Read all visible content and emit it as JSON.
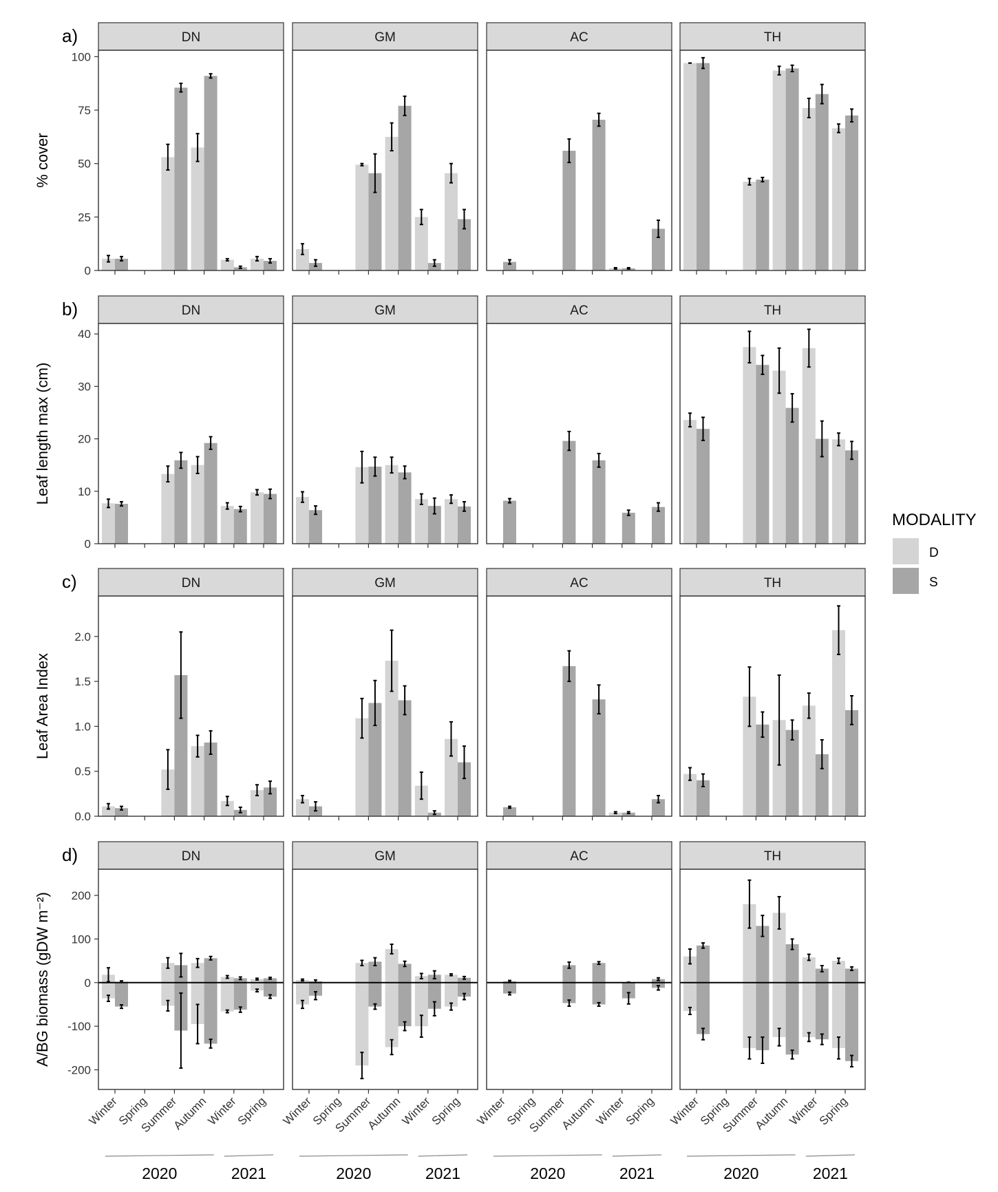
{
  "legend": {
    "title": "MODALITY",
    "items": [
      {
        "label": "D",
        "color": "#d4d4d4"
      },
      {
        "label": "S",
        "color": "#a6a6a6"
      }
    ]
  },
  "sites": [
    "DN",
    "GM",
    "AC",
    "TH"
  ],
  "seasons": [
    "Winter",
    "Spring",
    "Summer",
    "Autumn",
    "Winter",
    "Spring"
  ],
  "years": [
    "2020",
    "2021"
  ],
  "chart_data": [
    {
      "type": "bar",
      "panel": "a)",
      "ylabel": "% cover",
      "ylim": [
        0,
        103
      ],
      "ticks": [
        0,
        25,
        50,
        75,
        100
      ],
      "tick_labels": [
        "0",
        "25",
        "50",
        "75",
        "100"
      ],
      "sites": {
        "DN": {
          "D": [
            5.5,
            null,
            53,
            57.5,
            5,
            5.5
          ],
          "D_err": [
            1.5,
            null,
            6,
            6.5,
            0.5,
            1
          ],
          "S": [
            5.5,
            null,
            85.5,
            91,
            1.5,
            4.5
          ],
          "S_err": [
            1,
            null,
            2,
            1,
            0.5,
            1
          ]
        },
        "GM": {
          "D": [
            10,
            null,
            49.5,
            62.5,
            25,
            45.5
          ],
          "D_err": [
            2.5,
            null,
            0.5,
            6.5,
            3.5,
            4.5
          ],
          "S": [
            3.5,
            null,
            45.5,
            77,
            3.5,
            24
          ],
          "S_err": [
            1.5,
            null,
            9,
            4.5,
            1.5,
            4.5
          ]
        },
        "AC": {
          "D": [
            null,
            null,
            null,
            null,
            1,
            null
          ],
          "D_err": [
            null,
            null,
            null,
            null,
            0.3,
            null
          ],
          "S": [
            4,
            null,
            56,
            70.5,
            1,
            19.5
          ],
          "S_err": [
            1,
            null,
            5.5,
            3,
            0.3,
            4
          ]
        },
        "TH": {
          "D": [
            97,
            null,
            41.5,
            93.5,
            76,
            66.5
          ],
          "D_err": [
            0,
            null,
            1.5,
            2,
            4.5,
            2
          ],
          "S": [
            97,
            null,
            42.5,
            94.5,
            82.5,
            72.5
          ],
          "S_err": [
            2.5,
            null,
            1,
            1.5,
            4.5,
            3
          ]
        }
      }
    },
    {
      "type": "bar",
      "panel": "b)",
      "ylabel": "Leaf length max (cm)",
      "ylim": [
        0,
        42
      ],
      "ticks": [
        0,
        10,
        20,
        30,
        40
      ],
      "tick_labels": [
        "0",
        "10",
        "20",
        "30",
        "40"
      ],
      "sites": {
        "DN": {
          "D": [
            7.7,
            null,
            13.3,
            15,
            7.2,
            9.8
          ],
          "D_err": [
            0.8,
            null,
            1.5,
            1.6,
            0.6,
            0.5
          ],
          "S": [
            7.6,
            null,
            15.9,
            19.2,
            6.6,
            9.5
          ],
          "S_err": [
            0.4,
            null,
            1.5,
            1.2,
            0.5,
            0.9
          ]
        },
        "GM": {
          "D": [
            8.9,
            null,
            14.6,
            15,
            8.5,
            8.5
          ],
          "D_err": [
            1,
            null,
            3,
            1.5,
            1,
            0.8
          ],
          "S": [
            6.4,
            null,
            14.7,
            13.6,
            7.2,
            7.1
          ],
          "S_err": [
            0.8,
            null,
            1.8,
            1.2,
            1.5,
            0.9
          ]
        },
        "AC": {
          "D": [
            null,
            null,
            null,
            null,
            null,
            null
          ],
          "D_err": [
            null,
            null,
            null,
            null,
            null,
            null
          ],
          "S": [
            8.2,
            null,
            19.6,
            15.9,
            5.9,
            7
          ],
          "S_err": [
            0.4,
            null,
            1.8,
            1.3,
            0.5,
            0.8
          ]
        },
        "TH": {
          "D": [
            23.6,
            null,
            37.5,
            33,
            37.3,
            19.9
          ],
          "D_err": [
            1.3,
            null,
            3,
            4.3,
            3.6,
            1.2
          ],
          "S": [
            21.9,
            null,
            34.1,
            25.9,
            20,
            17.8
          ],
          "S_err": [
            2.2,
            null,
            1.8,
            2.7,
            3.4,
            1.7
          ]
        }
      }
    },
    {
      "type": "bar",
      "panel": "c)",
      "ylabel": "Leaf Area Index",
      "ylim": [
        0,
        2.45
      ],
      "ticks": [
        0,
        0.5,
        1,
        1.5,
        2
      ],
      "tick_labels": [
        "0.0",
        "0.5",
        "1.0",
        "1.5",
        "2.0"
      ],
      "sites": {
        "DN": {
          "D": [
            0.11,
            null,
            0.52,
            0.78,
            0.17,
            0.29
          ],
          "D_err": [
            0.03,
            null,
            0.22,
            0.12,
            0.05,
            0.06
          ],
          "S": [
            0.09,
            null,
            1.57,
            0.82,
            0.07,
            0.32
          ],
          "S_err": [
            0.02,
            null,
            0.48,
            0.13,
            0.03,
            0.07
          ]
        },
        "GM": {
          "D": [
            0.19,
            null,
            1.09,
            1.73,
            0.34,
            0.86
          ],
          "D_err": [
            0.04,
            null,
            0.22,
            0.34,
            0.15,
            0.19
          ],
          "S": [
            0.11,
            null,
            1.26,
            1.29,
            0.04,
            0.6
          ],
          "S_err": [
            0.05,
            null,
            0.25,
            0.16,
            0.02,
            0.18
          ]
        },
        "AC": {
          "D": [
            null,
            null,
            null,
            null,
            0.04,
            null
          ],
          "D_err": [
            null,
            null,
            null,
            null,
            0.01,
            null
          ],
          "S": [
            0.1,
            null,
            1.67,
            1.3,
            0.04,
            0.19
          ],
          "S_err": [
            0.01,
            null,
            0.17,
            0.16,
            0.01,
            0.04
          ]
        },
        "TH": {
          "D": [
            0.47,
            null,
            1.33,
            1.07,
            1.23,
            2.07
          ],
          "D_err": [
            0.07,
            null,
            0.33,
            0.5,
            0.14,
            0.27
          ],
          "S": [
            0.4,
            null,
            1.02,
            0.96,
            0.69,
            1.18
          ],
          "S_err": [
            0.07,
            null,
            0.14,
            0.11,
            0.16,
            0.16
          ]
        }
      }
    },
    {
      "type": "bar",
      "panel": "d)",
      "ylabel": "A/BG biomass (gDW m⁻²)",
      "ylim": [
        -245,
        260
      ],
      "ticks": [
        -200,
        -100,
        0,
        100,
        200
      ],
      "tick_labels": [
        "-200",
        "-100",
        "0",
        "100",
        "200"
      ],
      "sites": {
        "DN": {
          "D_above": [
            18,
            null,
            45,
            45,
            13,
            8
          ],
          "D_above_err": [
            16,
            null,
            12,
            10,
            3,
            2
          ],
          "S_above": [
            2,
            null,
            40,
            56,
            10,
            10
          ],
          "S_above_err": [
            2,
            null,
            27,
            4,
            3,
            2
          ],
          "D_below": [
            -36,
            null,
            -53,
            -95,
            -66,
            -18
          ],
          "D_below_err": [
            7,
            null,
            12,
            45,
            3,
            3
          ],
          "S_below": [
            -55,
            null,
            -110,
            -140,
            -62,
            -32
          ],
          "S_below_err": [
            4,
            null,
            86,
            10,
            6,
            4
          ]
        },
        "GM": {
          "D_above": [
            6,
            null,
            45,
            77,
            15,
            18
          ],
          "D_above_err": [
            2,
            null,
            6,
            11,
            6,
            2
          ],
          "S_above": [
            3,
            null,
            48,
            43,
            18,
            11
          ],
          "S_above_err": [
            3,
            null,
            9,
            6,
            9,
            3
          ],
          "D_below": [
            -50,
            null,
            -190,
            -148,
            -100,
            -55
          ],
          "D_below_err": [
            9,
            null,
            30,
            17,
            25,
            8
          ],
          "S_below": [
            -30,
            null,
            -55,
            -100,
            -60,
            -32
          ],
          "S_below_err": [
            9,
            null,
            6,
            10,
            16,
            7
          ]
        },
        "AC": {
          "D_above": [
            null,
            null,
            null,
            null,
            null,
            null
          ],
          "D_above_err": [
            null,
            null,
            null,
            null,
            null,
            null
          ],
          "S_above": [
            3,
            null,
            40,
            45,
            0,
            8
          ],
          "S_above_err": [
            2,
            null,
            7,
            3,
            1,
            3
          ],
          "D_below": [
            null,
            null,
            null,
            null,
            null,
            null
          ],
          "D_below_err": [
            null,
            null,
            null,
            null,
            null,
            null
          ],
          "S_below": [
            -25,
            null,
            -47,
            -50,
            -36,
            -12
          ],
          "S_below_err": [
            3,
            null,
            7,
            4,
            13,
            5
          ]
        },
        "TH": {
          "D_above": [
            60,
            null,
            180,
            160,
            58,
            50
          ],
          "D_above_err": [
            17,
            null,
            55,
            37,
            7,
            6
          ],
          "S_above": [
            85,
            null,
            130,
            88,
            32,
            32
          ],
          "S_above_err": [
            6,
            null,
            24,
            12,
            7,
            4
          ],
          "D_below": [
            -65,
            null,
            -150,
            -125,
            -125,
            -150
          ],
          "D_below_err": [
            8,
            null,
            25,
            20,
            10,
            25
          ],
          "S_below": [
            -118,
            null,
            -155,
            -165,
            -130,
            -180
          ],
          "S_below_err": [
            13,
            null,
            30,
            10,
            12,
            13
          ]
        }
      }
    }
  ]
}
